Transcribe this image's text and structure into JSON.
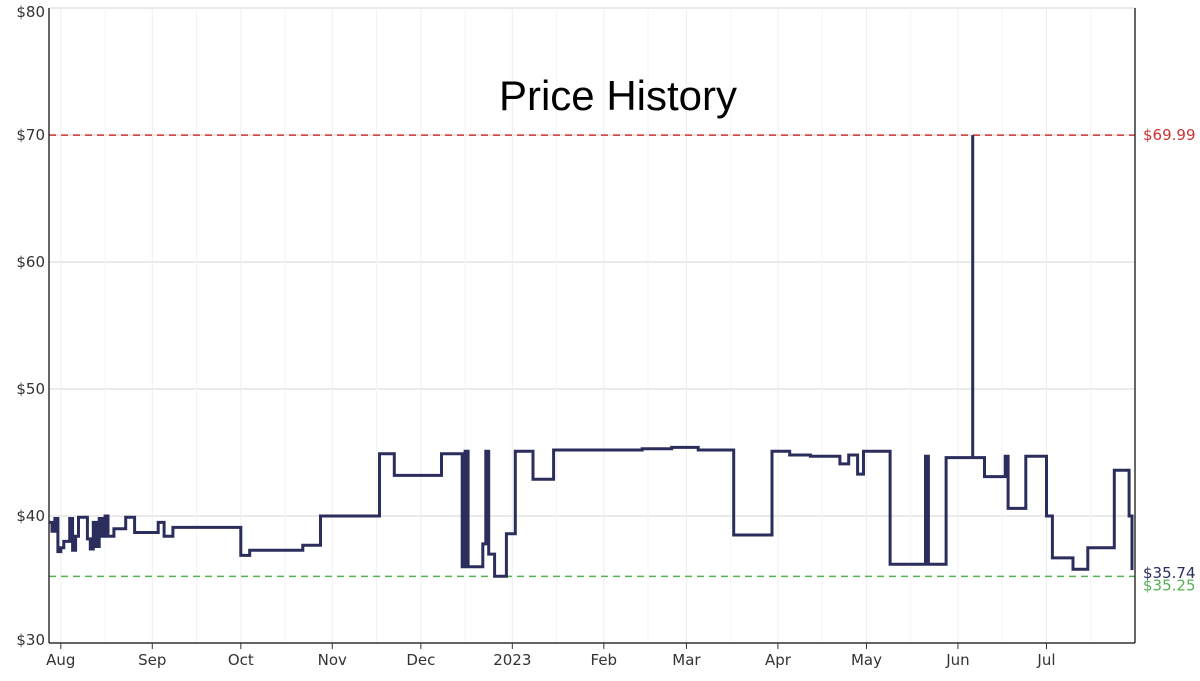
{
  "chart_data": {
    "type": "line",
    "title": "Price History",
    "xlabel": "",
    "ylabel": "",
    "ylim": [
      30,
      80
    ],
    "y_ticks": [
      "$30",
      "$40",
      "$50",
      "$60",
      "$70",
      "$80"
    ],
    "x_ticks": [
      "Aug",
      "Sep",
      "Oct",
      "Nov",
      "Dec",
      "2023",
      "Feb",
      "Mar",
      "Apr",
      "May",
      "Jun",
      "Jul"
    ],
    "xlim": [
      "2022-07-28",
      "2023-07-31"
    ],
    "grid": true,
    "legend": "none",
    "series": [
      {
        "color": "#2b2d5c",
        "step": true,
        "x": [
          "2022-07-28",
          "2022-07-29",
          "2022-07-30",
          "2022-07-31",
          "2022-08-01",
          "2022-08-02",
          "2022-08-04",
          "2022-08-05",
          "2022-08-06",
          "2022-08-07",
          "2022-08-08",
          "2022-08-10",
          "2022-08-11",
          "2022-08-12",
          "2022-08-13",
          "2022-08-14",
          "2022-08-15",
          "2022-08-16",
          "2022-08-17",
          "2022-08-19",
          "2022-08-23",
          "2022-08-26",
          "2022-09-03",
          "2022-09-05",
          "2022-09-08",
          "2022-09-12",
          "2022-09-13",
          "2022-09-20",
          "2022-10-01",
          "2022-10-04",
          "2022-10-16",
          "2022-10-22",
          "2022-10-24",
          "2022-10-28",
          "2022-11-17",
          "2022-11-22",
          "2022-12-08",
          "2022-12-10",
          "2022-12-15",
          "2022-12-16",
          "2022-12-17",
          "2022-12-20",
          "2022-12-22",
          "2022-12-23",
          "2022-12-24",
          "2022-12-26",
          "2022-12-30",
          "2023-01-02",
          "2023-01-08",
          "2023-01-15",
          "2023-02-14",
          "2023-02-24",
          "2023-03-05",
          "2023-03-17",
          "2023-03-30",
          "2023-04-05",
          "2023-04-12",
          "2023-04-20",
          "2023-04-22",
          "2023-04-25",
          "2023-04-28",
          "2023-04-30",
          "2023-05-05",
          "2023-05-09",
          "2023-05-21",
          "2023-05-22",
          "2023-05-28",
          "2023-05-29",
          "2023-06-06",
          "2023-06-06",
          "2023-06-10",
          "2023-06-13",
          "2023-06-17",
          "2023-06-18",
          "2023-06-24",
          "2023-06-28",
          "2023-07-01",
          "2023-07-03",
          "2023-07-10",
          "2023-07-15",
          "2023-07-24",
          "2023-07-29",
          "2023-07-30"
        ],
        "y": [
          39.5,
          38.8,
          39.8,
          37.2,
          37.5,
          38.0,
          39.8,
          37.3,
          38.4,
          39.9,
          39.9,
          38.2,
          37.4,
          39.5,
          37.6,
          39.8,
          38.4,
          40.0,
          38.4,
          39.0,
          39.9,
          38.7,
          39.5,
          38.4,
          39.1,
          39.1,
          39.1,
          39.1,
          36.9,
          37.3,
          37.3,
          37.7,
          37.7,
          40.0,
          44.9,
          43.2,
          44.9,
          44.9,
          36.0,
          45.1,
          36.0,
          36.0,
          37.8,
          45.1,
          37.0,
          35.25,
          38.6,
          45.1,
          42.9,
          45.2,
          45.3,
          45.4,
          45.2,
          38.5,
          45.1,
          44.8,
          44.7,
          44.7,
          44.1,
          44.8,
          43.3,
          45.1,
          45.1,
          36.2,
          44.7,
          36.2,
          44.6,
          44.6,
          69.99,
          44.6,
          43.1,
          43.1,
          44.7,
          40.6,
          44.7,
          44.7,
          40.0,
          36.7,
          35.8,
          37.5,
          43.6,
          40.0,
          35.74
        ]
      }
    ],
    "reference_lines": [
      {
        "value": 69.99,
        "label": "$69.99",
        "color": "#cc3333"
      },
      {
        "value": 35.25,
        "label": "$35.25",
        "color": "#55b050"
      }
    ],
    "current_label": {
      "value": 35.74,
      "label": "$35.74",
      "color": "#2b2d5c"
    }
  }
}
